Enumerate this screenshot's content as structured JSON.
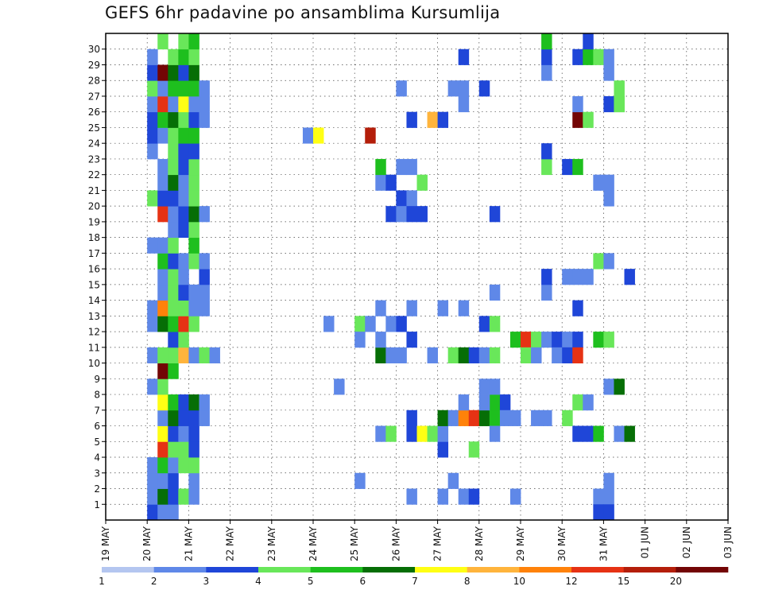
{
  "title": "GEFS 6hr padavine po ansamblima Kursumlija",
  "chart_data": {
    "type": "heatmap",
    "title": "GEFS 6hr padavine po ansamblima Kursumlija",
    "xlabel": "",
    "ylabel": "",
    "x_tick_labels": [
      "19 MAY",
      "20 MAY",
      "21 MAY",
      "22 MAY",
      "23 MAY",
      "24 MAY",
      "25 MAY",
      "26 MAY",
      "27 MAY",
      "28 MAY",
      "29 MAY",
      "30 MAY",
      "31 MAY",
      "01 JUN",
      "02 JUN",
      "03 JUN"
    ],
    "y_tick_labels": [
      "1",
      "2",
      "3",
      "4",
      "5",
      "6",
      "7",
      "8",
      "9",
      "10",
      "11",
      "12",
      "13",
      "14",
      "15",
      "16",
      "17",
      "18",
      "19",
      "20",
      "21",
      "22",
      "23",
      "24",
      "25",
      "26",
      "27",
      "28",
      "29",
      "30"
    ],
    "ylim": [
      0,
      30
    ],
    "grid": true,
    "colorbar": {
      "labels": [
        "1",
        "2",
        "3",
        "4",
        "5",
        "6",
        "7",
        "8",
        "10",
        "12",
        "15",
        "20"
      ],
      "colors": [
        "#b4c6f0",
        "#5f88e8",
        "#1f46d8",
        "#69e75a",
        "#1ebf1e",
        "#066e06",
        "#ffff14",
        "#ffb43c",
        "#ff820a",
        "#e63214",
        "#b41e0a",
        "#730505"
      ]
    },
    "cells": [
      {
        "x": 4,
        "y": 0,
        "v": 2
      },
      {
        "x": 4,
        "y": 1,
        "v": 1
      },
      {
        "x": 5,
        "y": 0,
        "v": 1
      },
      {
        "x": 6,
        "y": 0,
        "v": 1
      },
      {
        "x": 5,
        "y": 1,
        "v": 5
      },
      {
        "x": 6,
        "y": 1,
        "v": 2
      },
      {
        "x": 7,
        "y": 1,
        "v": 3
      },
      {
        "x": 8,
        "y": 1,
        "v": 1
      },
      {
        "x": 4,
        "y": 2,
        "v": 1
      },
      {
        "x": 5,
        "y": 2,
        "v": 1
      },
      {
        "x": 6,
        "y": 2,
        "v": 2
      },
      {
        "x": 8,
        "y": 2,
        "v": 1
      },
      {
        "x": 4,
        "y": 3,
        "v": 1
      },
      {
        "x": 5,
        "y": 3,
        "v": 4
      },
      {
        "x": 6,
        "y": 3,
        "v": 1
      },
      {
        "x": 7,
        "y": 3,
        "v": 3
      },
      {
        "x": 8,
        "y": 3,
        "v": 3
      },
      {
        "x": 5,
        "y": 4,
        "v": 9
      },
      {
        "x": 6,
        "y": 4,
        "v": 3
      },
      {
        "x": 7,
        "y": 4,
        "v": 3
      },
      {
        "x": 8,
        "y": 4,
        "v": 2
      },
      {
        "x": 5,
        "y": 5,
        "v": 6
      },
      {
        "x": 6,
        "y": 5,
        "v": 2
      },
      {
        "x": 7,
        "y": 5,
        "v": 1
      },
      {
        "x": 8,
        "y": 5,
        "v": 2
      },
      {
        "x": 5,
        "y": 6,
        "v": 1
      },
      {
        "x": 6,
        "y": 6,
        "v": 5
      },
      {
        "x": 7,
        "y": 6,
        "v": 2
      },
      {
        "x": 8,
        "y": 6,
        "v": 2
      },
      {
        "x": 9,
        "y": 6,
        "v": 1
      },
      {
        "x": 5,
        "y": 7,
        "v": 6
      },
      {
        "x": 6,
        "y": 7,
        "v": 4
      },
      {
        "x": 7,
        "y": 7,
        "v": 2
      },
      {
        "x": 8,
        "y": 7,
        "v": 5
      },
      {
        "x": 9,
        "y": 7,
        "v": 1
      },
      {
        "x": 4,
        "y": 8,
        "v": 1
      },
      {
        "x": 5,
        "y": 8,
        "v": 3
      },
      {
        "x": 5,
        "y": 9,
        "v": 11
      },
      {
        "x": 6,
        "y": 9,
        "v": 4
      },
      {
        "x": 4,
        "y": 10,
        "v": 1
      },
      {
        "x": 5,
        "y": 10,
        "v": 3
      },
      {
        "x": 6,
        "y": 10,
        "v": 3
      },
      {
        "x": 7,
        "y": 10,
        "v": 7
      },
      {
        "x": 8,
        "y": 10,
        "v": 1
      },
      {
        "x": 9,
        "y": 10,
        "v": 3
      },
      {
        "x": 10,
        "y": 10,
        "v": 1
      },
      {
        "x": 6,
        "y": 11,
        "v": 2
      },
      {
        "x": 7,
        "y": 11,
        "v": 3
      },
      {
        "x": 4,
        "y": 12,
        "v": 1
      },
      {
        "x": 5,
        "y": 12,
        "v": 5
      },
      {
        "x": 6,
        "y": 12,
        "v": 4
      },
      {
        "x": 7,
        "y": 12,
        "v": 9
      },
      {
        "x": 8,
        "y": 12,
        "v": 3
      },
      {
        "x": 4,
        "y": 13,
        "v": 1
      },
      {
        "x": 5,
        "y": 13,
        "v": 8
      },
      {
        "x": 6,
        "y": 13,
        "v": 3
      },
      {
        "x": 7,
        "y": 13,
        "v": 3
      },
      {
        "x": 8,
        "y": 13,
        "v": 1
      },
      {
        "x": 9,
        "y": 13,
        "v": 1
      },
      {
        "x": 5,
        "y": 14,
        "v": 1
      },
      {
        "x": 6,
        "y": 14,
        "v": 3
      },
      {
        "x": 7,
        "y": 14,
        "v": 2
      },
      {
        "x": 8,
        "y": 14,
        "v": 1
      },
      {
        "x": 9,
        "y": 14,
        "v": 1
      },
      {
        "x": 5,
        "y": 15,
        "v": 1
      },
      {
        "x": 6,
        "y": 15,
        "v": 3
      },
      {
        "x": 7,
        "y": 15,
        "v": 1
      },
      {
        "x": 9,
        "y": 15,
        "v": 2
      },
      {
        "x": 5,
        "y": 16,
        "v": 4
      },
      {
        "x": 6,
        "y": 16,
        "v": 2
      },
      {
        "x": 7,
        "y": 16,
        "v": 1
      },
      {
        "x": 8,
        "y": 16,
        "v": 3
      },
      {
        "x": 9,
        "y": 16,
        "v": 1
      },
      {
        "x": 4,
        "y": 17,
        "v": 1
      },
      {
        "x": 5,
        "y": 17,
        "v": 1
      },
      {
        "x": 6,
        "y": 17,
        "v": 3
      },
      {
        "x": 8,
        "y": 17,
        "v": 4
      },
      {
        "x": 6,
        "y": 18,
        "v": 1
      },
      {
        "x": 7,
        "y": 18,
        "v": 2
      },
      {
        "x": 8,
        "y": 18,
        "v": 3
      },
      {
        "x": 5,
        "y": 19,
        "v": 9
      },
      {
        "x": 6,
        "y": 19,
        "v": 1
      },
      {
        "x": 7,
        "y": 19,
        "v": 2
      },
      {
        "x": 8,
        "y": 19,
        "v": 5
      },
      {
        "x": 9,
        "y": 19,
        "v": 1
      },
      {
        "x": 4,
        "y": 20,
        "v": 3
      },
      {
        "x": 5,
        "y": 20,
        "v": 2
      },
      {
        "x": 6,
        "y": 20,
        "v": 2
      },
      {
        "x": 7,
        "y": 20,
        "v": 1
      },
      {
        "x": 8,
        "y": 20,
        "v": 3
      },
      {
        "x": 5,
        "y": 21,
        "v": 1
      },
      {
        "x": 6,
        "y": 21,
        "v": 5
      },
      {
        "x": 7,
        "y": 21,
        "v": 1
      },
      {
        "x": 8,
        "y": 21,
        "v": 3
      },
      {
        "x": 5,
        "y": 22,
        "v": 1
      },
      {
        "x": 6,
        "y": 22,
        "v": 3
      },
      {
        "x": 7,
        "y": 22,
        "v": 2
      },
      {
        "x": 8,
        "y": 22,
        "v": 3
      },
      {
        "x": 4,
        "y": 23,
        "v": 1
      },
      {
        "x": 6,
        "y": 23,
        "v": 3
      },
      {
        "x": 7,
        "y": 23,
        "v": 2
      },
      {
        "x": 8,
        "y": 23,
        "v": 2
      },
      {
        "x": 4,
        "y": 24,
        "v": 2
      },
      {
        "x": 5,
        "y": 24,
        "v": 1
      },
      {
        "x": 6,
        "y": 24,
        "v": 3
      },
      {
        "x": 7,
        "y": 24,
        "v": 4
      },
      {
        "x": 8,
        "y": 24,
        "v": 4
      },
      {
        "x": 4,
        "y": 25,
        "v": 2
      },
      {
        "x": 5,
        "y": 25,
        "v": 4
      },
      {
        "x": 6,
        "y": 25,
        "v": 5
      },
      {
        "x": 7,
        "y": 25,
        "v": 3
      },
      {
        "x": 8,
        "y": 25,
        "v": 2
      },
      {
        "x": 9,
        "y": 25,
        "v": 1
      },
      {
        "x": 4,
        "y": 26,
        "v": 1
      },
      {
        "x": 5,
        "y": 26,
        "v": 9
      },
      {
        "x": 6,
        "y": 26,
        "v": 1
      },
      {
        "x": 7,
        "y": 26,
        "v": 6
      },
      {
        "x": 8,
        "y": 26,
        "v": 1
      },
      {
        "x": 9,
        "y": 26,
        "v": 1
      },
      {
        "x": 4,
        "y": 27,
        "v": 3
      },
      {
        "x": 5,
        "y": 27,
        "v": 1
      },
      {
        "x": 6,
        "y": 27,
        "v": 4
      },
      {
        "x": 7,
        "y": 27,
        "v": 4
      },
      {
        "x": 8,
        "y": 27,
        "v": 4
      },
      {
        "x": 9,
        "y": 27,
        "v": 1
      },
      {
        "x": 4,
        "y": 28,
        "v": 2
      },
      {
        "x": 5,
        "y": 28,
        "v": 11
      },
      {
        "x": 6,
        "y": 28,
        "v": 5
      },
      {
        "x": 7,
        "y": 28,
        "v": 2
      },
      {
        "x": 8,
        "y": 28,
        "v": 5
      },
      {
        "x": 4,
        "y": 29,
        "v": 1
      },
      {
        "x": 6,
        "y": 29,
        "v": 3
      },
      {
        "x": 7,
        "y": 29,
        "v": 4
      },
      {
        "x": 8,
        "y": 29,
        "v": 3
      },
      {
        "x": 5,
        "y": 30,
        "v": 3
      },
      {
        "x": 7,
        "y": 30,
        "v": 3
      },
      {
        "x": 8,
        "y": 30,
        "v": 4
      },
      {
        "x": 19,
        "y": 24,
        "v": 1
      },
      {
        "x": 20,
        "y": 24,
        "v": 6
      },
      {
        "x": 21,
        "y": 12,
        "v": 1
      },
      {
        "x": 22,
        "y": 8,
        "v": 1
      },
      {
        "x": 25,
        "y": 24,
        "v": 10
      },
      {
        "x": 24,
        "y": 12,
        "v": 3
      },
      {
        "x": 25,
        "y": 12,
        "v": 1
      },
      {
        "x": 24,
        "y": 11,
        "v": 1
      },
      {
        "x": 24,
        "y": 2,
        "v": 1
      },
      {
        "x": 26,
        "y": 5,
        "v": 1
      },
      {
        "x": 27,
        "y": 5,
        "v": 3
      },
      {
        "x": 26,
        "y": 10,
        "v": 5
      },
      {
        "x": 27,
        "y": 10,
        "v": 1
      },
      {
        "x": 28,
        "y": 10,
        "v": 1
      },
      {
        "x": 26,
        "y": 11,
        "v": 1
      },
      {
        "x": 26,
        "y": 13,
        "v": 1
      },
      {
        "x": 27,
        "y": 12,
        "v": 1
      },
      {
        "x": 28,
        "y": 12,
        "v": 2
      },
      {
        "x": 27,
        "y": 19,
        "v": 2
      },
      {
        "x": 28,
        "y": 20,
        "v": 2
      },
      {
        "x": 29,
        "y": 20,
        "v": 1
      },
      {
        "x": 28,
        "y": 19,
        "v": 1
      },
      {
        "x": 26,
        "y": 21,
        "v": 1
      },
      {
        "x": 27,
        "y": 21,
        "v": 2
      },
      {
        "x": 26,
        "y": 22,
        "v": 4
      },
      {
        "x": 28,
        "y": 22,
        "v": 1
      },
      {
        "x": 29,
        "y": 22,
        "v": 1
      },
      {
        "x": 28,
        "y": 27,
        "v": 1
      },
      {
        "x": 29,
        "y": 1,
        "v": 1
      },
      {
        "x": 29,
        "y": 6,
        "v": 2
      },
      {
        "x": 29,
        "y": 5,
        "v": 2
      },
      {
        "x": 30,
        "y": 5,
        "v": 6
      },
      {
        "x": 31,
        "y": 5,
        "v": 3
      },
      {
        "x": 29,
        "y": 11,
        "v": 2
      },
      {
        "x": 29,
        "y": 19,
        "v": 2
      },
      {
        "x": 30,
        "y": 19,
        "v": 2
      },
      {
        "x": 30,
        "y": 21,
        "v": 3
      },
      {
        "x": 29,
        "y": 25,
        "v": 2
      },
      {
        "x": 29,
        "y": 13,
        "v": 1
      },
      {
        "x": 31,
        "y": 10,
        "v": 1
      },
      {
        "x": 32,
        "y": 4,
        "v": 2
      },
      {
        "x": 32,
        "y": 5,
        "v": 1
      },
      {
        "x": 31,
        "y": 25,
        "v": 7
      },
      {
        "x": 32,
        "y": 25,
        "v": 2
      },
      {
        "x": 32,
        "y": 6,
        "v": 5
      },
      {
        "x": 32,
        "y": 13,
        "v": 1
      },
      {
        "x": 32,
        "y": 1,
        "v": 1
      },
      {
        "x": 33,
        "y": 6,
        "v": 1
      },
      {
        "x": 33,
        "y": 10,
        "v": 3
      },
      {
        "x": 34,
        "y": 10,
        "v": 5
      },
      {
        "x": 35,
        "y": 10,
        "v": 2
      },
      {
        "x": 34,
        "y": 6,
        "v": 8
      },
      {
        "x": 35,
        "y": 6,
        "v": 9
      },
      {
        "x": 34,
        "y": 7,
        "v": 1
      },
      {
        "x": 33,
        "y": 2,
        "v": 1
      },
      {
        "x": 34,
        "y": 1,
        "v": 1
      },
      {
        "x": 35,
        "y": 1,
        "v": 2
      },
      {
        "x": 35,
        "y": 4,
        "v": 3
      },
      {
        "x": 34,
        "y": 26,
        "v": 1
      },
      {
        "x": 33,
        "y": 27,
        "v": 1
      },
      {
        "x": 34,
        "y": 27,
        "v": 1
      },
      {
        "x": 34,
        "y": 29,
        "v": 2
      },
      {
        "x": 34,
        "y": 13,
        "v": 1
      },
      {
        "x": 36,
        "y": 6,
        "v": 5
      },
      {
        "x": 37,
        "y": 6,
        "v": 4
      },
      {
        "x": 37,
        "y": 7,
        "v": 4
      },
      {
        "x": 38,
        "y": 7,
        "v": 2
      },
      {
        "x": 36,
        "y": 8,
        "v": 1
      },
      {
        "x": 37,
        "y": 8,
        "v": 1
      },
      {
        "x": 36,
        "y": 7,
        "v": 1
      },
      {
        "x": 37,
        "y": 5,
        "v": 1
      },
      {
        "x": 36,
        "y": 10,
        "v": 1
      },
      {
        "x": 37,
        "y": 10,
        "v": 3
      },
      {
        "x": 36,
        "y": 12,
        "v": 2
      },
      {
        "x": 37,
        "y": 12,
        "v": 3
      },
      {
        "x": 37,
        "y": 14,
        "v": 1
      },
      {
        "x": 37,
        "y": 19,
        "v": 2
      },
      {
        "x": 36,
        "y": 27,
        "v": 2
      },
      {
        "x": 38,
        "y": 6,
        "v": 1
      },
      {
        "x": 39,
        "y": 6,
        "v": 1
      },
      {
        "x": 39,
        "y": 1,
        "v": 1
      },
      {
        "x": 39,
        "y": 11,
        "v": 4
      },
      {
        "x": 40,
        "y": 11,
        "v": 9
      },
      {
        "x": 41,
        "y": 11,
        "v": 3
      },
      {
        "x": 40,
        "y": 10,
        "v": 3
      },
      {
        "x": 41,
        "y": 10,
        "v": 1
      },
      {
        "x": 42,
        "y": 11,
        "v": 1
      },
      {
        "x": 43,
        "y": 11,
        "v": 2
      },
      {
        "x": 44,
        "y": 11,
        "v": 1
      },
      {
        "x": 45,
        "y": 11,
        "v": 2
      },
      {
        "x": 43,
        "y": 10,
        "v": 1
      },
      {
        "x": 44,
        "y": 10,
        "v": 2
      },
      {
        "x": 45,
        "y": 10,
        "v": 9
      },
      {
        "x": 42,
        "y": 14,
        "v": 1
      },
      {
        "x": 42,
        "y": 15,
        "v": 2
      },
      {
        "x": 44,
        "y": 15,
        "v": 1
      },
      {
        "x": 45,
        "y": 15,
        "v": 1
      },
      {
        "x": 46,
        "y": 15,
        "v": 1
      },
      {
        "x": 45,
        "y": 13,
        "v": 2
      },
      {
        "x": 47,
        "y": 16,
        "v": 3
      },
      {
        "x": 48,
        "y": 16,
        "v": 1
      },
      {
        "x": 42,
        "y": 22,
        "v": 3
      },
      {
        "x": 44,
        "y": 22,
        "v": 2
      },
      {
        "x": 45,
        "y": 22,
        "v": 4
      },
      {
        "x": 42,
        "y": 23,
        "v": 2
      },
      {
        "x": 45,
        "y": 25,
        "v": 11
      },
      {
        "x": 46,
        "y": 25,
        "v": 3
      },
      {
        "x": 45,
        "y": 26,
        "v": 1
      },
      {
        "x": 42,
        "y": 28,
        "v": 1
      },
      {
        "x": 42,
        "y": 29,
        "v": 2
      },
      {
        "x": 45,
        "y": 29,
        "v": 2
      },
      {
        "x": 46,
        "y": 29,
        "v": 4
      },
      {
        "x": 47,
        "y": 29,
        "v": 3
      },
      {
        "x": 48,
        "y": 29,
        "v": 1
      },
      {
        "x": 42,
        "y": 30,
        "v": 4
      },
      {
        "x": 46,
        "y": 30,
        "v": 2
      },
      {
        "x": 44,
        "y": 6,
        "v": 3
      },
      {
        "x": 45,
        "y": 7,
        "v": 3
      },
      {
        "x": 46,
        "y": 7,
        "v": 1
      },
      {
        "x": 42,
        "y": 6,
        "v": 1
      },
      {
        "x": 41,
        "y": 6,
        "v": 1
      },
      {
        "x": 45,
        "y": 5,
        "v": 2
      },
      {
        "x": 46,
        "y": 5,
        "v": 2
      },
      {
        "x": 47,
        "y": 5,
        "v": 4
      },
      {
        "x": 49,
        "y": 5,
        "v": 1
      },
      {
        "x": 50,
        "y": 5,
        "v": 5
      },
      {
        "x": 47,
        "y": 11,
        "v": 4
      },
      {
        "x": 48,
        "y": 11,
        "v": 3
      },
      {
        "x": 48,
        "y": 8,
        "v": 1
      },
      {
        "x": 49,
        "y": 8,
        "v": 5
      },
      {
        "x": 47,
        "y": 1,
        "v": 1
      },
      {
        "x": 48,
        "y": 1,
        "v": 1
      },
      {
        "x": 47,
        "y": 0,
        "v": 2
      },
      {
        "x": 48,
        "y": 0,
        "v": 2
      },
      {
        "x": 48,
        "y": 2,
        "v": 1
      },
      {
        "x": 48,
        "y": 20,
        "v": 1
      },
      {
        "x": 47,
        "y": 21,
        "v": 1
      },
      {
        "x": 48,
        "y": 21,
        "v": 1
      },
      {
        "x": 48,
        "y": 26,
        "v": 2
      },
      {
        "x": 49,
        "y": 26,
        "v": 3
      },
      {
        "x": 49,
        "y": 27,
        "v": 3
      },
      {
        "x": 48,
        "y": 28,
        "v": 1
      },
      {
        "x": 50,
        "y": 15,
        "v": 2
      },
      {
        "x": 49,
        "y": 26,
        "v": 3
      }
    ]
  }
}
